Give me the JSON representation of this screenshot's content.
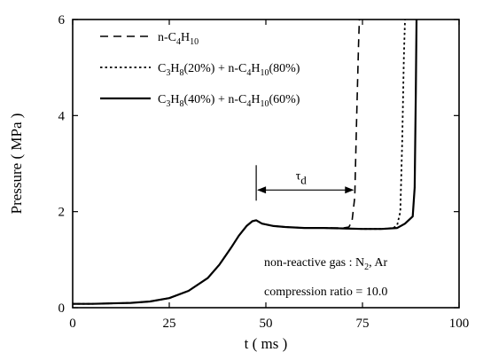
{
  "chart_data": {
    "type": "line",
    "xlabel": "t ( ms )",
    "ylabel": "Pressure ( MPa )",
    "xlim": [
      0,
      100
    ],
    "ylim": [
      0,
      6
    ],
    "xticks": [
      0,
      25,
      50,
      75,
      100
    ],
    "yticks": [
      0,
      2,
      4,
      6
    ],
    "grid": false,
    "legend_position": "top-left",
    "series": [
      {
        "name": "n-C4H10",
        "style": "dashed",
        "x": [
          0,
          5,
          10,
          15,
          20,
          25,
          30,
          35,
          38,
          41,
          43,
          45,
          46.5,
          47.5,
          49,
          52,
          55,
          60,
          65,
          70,
          71.5,
          72.3,
          73.0,
          73.5,
          74.0,
          74.2
        ],
        "y": [
          0.08,
          0.08,
          0.09,
          0.1,
          0.13,
          0.2,
          0.35,
          0.62,
          0.9,
          1.25,
          1.5,
          1.7,
          1.8,
          1.82,
          1.75,
          1.7,
          1.68,
          1.66,
          1.66,
          1.66,
          1.68,
          1.8,
          2.3,
          4.0,
          5.5,
          6.0
        ]
      },
      {
        "name": "C3H8(20%) + n-C4H10(80%)",
        "style": "dotted",
        "x": [
          0,
          5,
          10,
          15,
          20,
          25,
          30,
          35,
          38,
          41,
          43,
          45,
          46.5,
          47.5,
          49,
          52,
          55,
          60,
          65,
          70,
          75,
          80,
          83,
          84,
          84.8,
          85.3,
          85.7,
          86.0
        ],
        "y": [
          0.08,
          0.08,
          0.09,
          0.1,
          0.13,
          0.2,
          0.35,
          0.62,
          0.9,
          1.25,
          1.5,
          1.7,
          1.8,
          1.82,
          1.75,
          1.7,
          1.68,
          1.66,
          1.66,
          1.65,
          1.64,
          1.64,
          1.66,
          1.72,
          2.0,
          3.5,
          5.2,
          6.0
        ]
      },
      {
        "name": "C3H8(40%) + n-C4H10(60%)",
        "style": "solid",
        "x": [
          0,
          5,
          10,
          15,
          20,
          25,
          30,
          35,
          38,
          41,
          43,
          45,
          46.5,
          47.5,
          49,
          52,
          55,
          60,
          65,
          70,
          75,
          80,
          84,
          86,
          88,
          88.5,
          88.8,
          89.0
        ],
        "y": [
          0.08,
          0.08,
          0.09,
          0.1,
          0.13,
          0.2,
          0.35,
          0.62,
          0.9,
          1.25,
          1.5,
          1.7,
          1.8,
          1.82,
          1.75,
          1.7,
          1.68,
          1.66,
          1.66,
          1.65,
          1.64,
          1.64,
          1.66,
          1.75,
          1.9,
          2.5,
          4.5,
          6.0
        ]
      }
    ],
    "legend": {
      "items": [
        {
          "base": "n-C",
          "s1": "4",
          "mid": "H",
          "s2": "10",
          "rest": "",
          "s3": "",
          "rest2": "",
          "s4": "",
          "end": ""
        },
        {
          "base": "C",
          "s1": "3",
          "mid": "H",
          "s2": "8",
          "rest": "(20%) + n-C",
          "s3": "4",
          "rest2": "H",
          "s4": "10",
          "end": "(80%)"
        },
        {
          "base": "C",
          "s1": "3",
          "mid": "H",
          "s2": "8",
          "rest": "(40%) + n-C",
          "s3": "4",
          "rest2": "H",
          "s4": "10",
          "end": "(60%)"
        }
      ]
    },
    "annotations": {
      "tau": "τ",
      "tau_sub": "d",
      "tau_start": 47.5,
      "tau_end": 73.0,
      "tau_y": 2.45,
      "gas_prefix": "non-reactive gas : N",
      "gas_sub": "2",
      "gas_suffix": ", Ar",
      "ratio": "compression ratio = 10.0"
    }
  }
}
